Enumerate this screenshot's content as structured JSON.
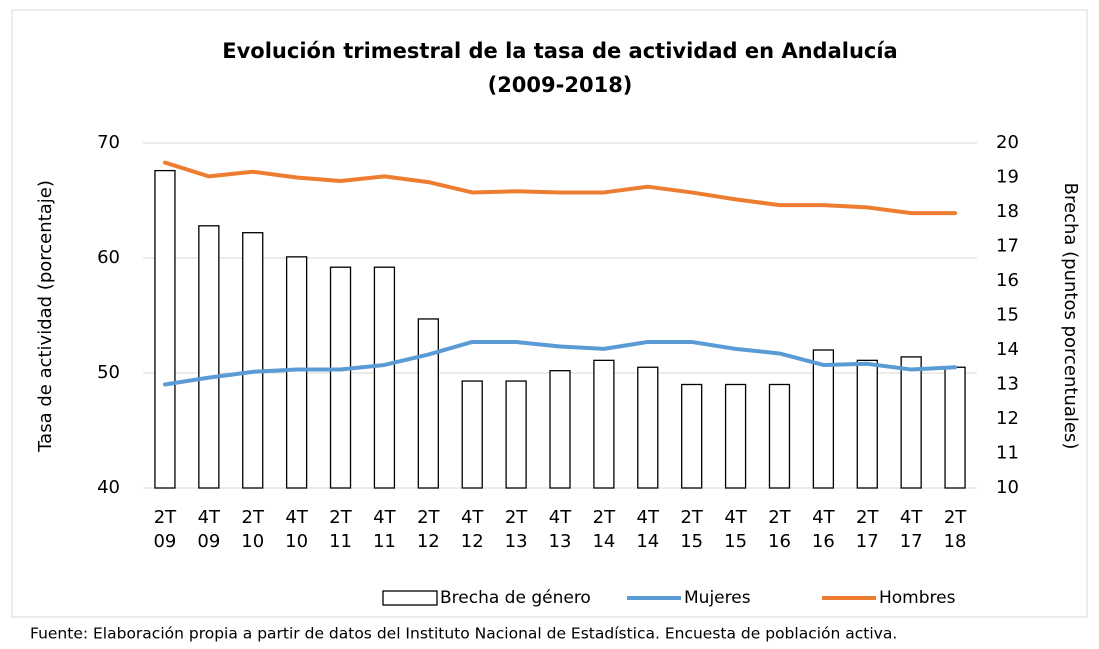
{
  "chart_data": {
    "type": "combo",
    "title": [
      "Evolución trimestral de la tasa de actividad en Andalucía",
      "(2009-2018)"
    ],
    "ylabel": "Tasa de actividad (porcentaje)",
    "y2label": "Brecha (puntos porcentuales)",
    "source": "Fuente: Elaboración propia a partir de datos del Instituto Nacional de Estadística. Encuesta de población activa.",
    "categories": [
      "2T 09",
      "4T 09",
      "2T 10",
      "4T 10",
      "2T 11",
      "4T 11",
      "2T 12",
      "4T 12",
      "2T 13",
      "4T 13",
      "2T 14",
      "4T 14",
      "2T 15",
      "4T 15",
      "2T 16",
      "4T 16",
      "2T 17",
      "4T 17",
      "2T 18"
    ],
    "ylim": [
      40,
      70
    ],
    "yticks": [
      40,
      50,
      60,
      70
    ],
    "y2lim": [
      10,
      20
    ],
    "y2ticks": [
      10,
      11,
      12,
      13,
      14,
      15,
      16,
      17,
      18,
      19,
      20
    ],
    "grid": true,
    "legend": "bottom",
    "series": [
      {
        "name": "Brecha de género",
        "type": "bar",
        "axis": "y2",
        "color": "#ffffff",
        "values": [
          19.2,
          17.6,
          17.4,
          16.7,
          16.4,
          16.4,
          14.9,
          13.1,
          13.1,
          13.4,
          13.7,
          13.5,
          13.0,
          13.0,
          13.0,
          14.0,
          13.7,
          13.8,
          13.5
        ]
      },
      {
        "name": "Mujeres",
        "type": "line",
        "color": "#5b9bd5",
        "values": [
          49.0,
          49.6,
          50.1,
          50.3,
          50.3,
          50.7,
          51.6,
          52.7,
          52.7,
          52.3,
          52.1,
          52.7,
          52.7,
          52.1,
          51.7,
          50.7,
          50.8,
          50.3,
          50.5
        ]
      },
      {
        "name": "Hombres",
        "type": "line",
        "color": "#ed7d31",
        "values": [
          68.3,
          67.1,
          67.5,
          67.0,
          66.7,
          67.1,
          66.6,
          65.7,
          65.8,
          65.7,
          65.7,
          66.2,
          65.7,
          65.1,
          64.6,
          64.6,
          64.4,
          63.9,
          63.9
        ]
      }
    ]
  }
}
